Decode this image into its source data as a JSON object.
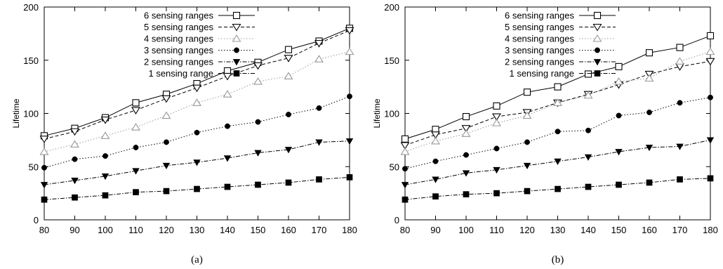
{
  "chart_data": [
    {
      "type": "line",
      "caption": "(a)",
      "ylabel": "Lifetime",
      "xlim": [
        80,
        180
      ],
      "ylim": [
        0,
        200
      ],
      "x": [
        80,
        90,
        100,
        110,
        120,
        130,
        140,
        150,
        160,
        170,
        180
      ],
      "xticks": [
        "80",
        "90",
        "100",
        "110",
        "120",
        "130",
        "140",
        "150",
        "160",
        "170",
        "180"
      ],
      "yticks": [
        "0",
        "50",
        "100",
        "150",
        "200"
      ],
      "grid": false,
      "legend_position": "top-left",
      "series": [
        {
          "name": "6 sensing ranges",
          "marker": "square-open",
          "dash": "solid",
          "values": [
            79,
            86,
            96,
            110,
            118,
            128,
            140,
            148,
            160,
            168,
            180
          ]
        },
        {
          "name": "5 sensing ranges",
          "marker": "triangle-down-open",
          "dash": "dashed",
          "values": [
            76,
            83,
            94,
            103,
            114,
            124,
            135,
            145,
            152,
            166,
            178
          ]
        },
        {
          "name": "4 sensing ranges",
          "marker": "triangle-up-open",
          "dash": "dotted",
          "values": [
            64,
            71,
            79,
            87,
            98,
            110,
            118,
            130,
            135,
            151,
            158
          ]
        },
        {
          "name": "3 sensing ranges",
          "marker": "circle-filled",
          "dash": "dotted",
          "values": [
            49,
            57,
            60,
            68,
            73,
            82,
            88,
            92,
            99,
            105,
            116
          ]
        },
        {
          "name": "2 sensing ranges",
          "marker": "triangle-down-filled",
          "dash": "dashdot",
          "values": [
            33,
            37,
            41,
            46,
            51,
            54,
            58,
            63,
            66,
            73,
            74
          ]
        },
        {
          "name": "1 sensing range",
          "marker": "square-filled",
          "dash": "dashdot",
          "values": [
            19,
            21,
            23,
            26,
            27,
            29,
            31,
            33,
            35,
            38,
            40
          ]
        }
      ]
    },
    {
      "type": "line",
      "caption": "(b)",
      "ylabel": "Lifetime",
      "xlim": [
        80,
        180
      ],
      "ylim": [
        0,
        200
      ],
      "x": [
        80,
        90,
        100,
        110,
        120,
        130,
        140,
        150,
        160,
        170,
        180
      ],
      "xticks": [
        "80",
        "90",
        "100",
        "110",
        "120",
        "130",
        "140",
        "150",
        "160",
        "170",
        "180"
      ],
      "yticks": [
        "0",
        "50",
        "100",
        "150",
        "200"
      ],
      "grid": false,
      "legend_position": "top-left",
      "series": [
        {
          "name": "6 sensing ranges",
          "marker": "square-open",
          "dash": "solid",
          "values": [
            76,
            85,
            97,
            107,
            120,
            125,
            137,
            144,
            157,
            162,
            173
          ]
        },
        {
          "name": "5 sensing ranges",
          "marker": "triangle-down-open",
          "dash": "dashed",
          "values": [
            70,
            80,
            86,
            97,
            101,
            110,
            118,
            127,
            137,
            144,
            149
          ]
        },
        {
          "name": "4 sensing ranges",
          "marker": "triangle-up-open",
          "dash": "dotted",
          "values": [
            64,
            74,
            81,
            91,
            98,
            110,
            117,
            130,
            133,
            149,
            158
          ]
        },
        {
          "name": "3 sensing ranges",
          "marker": "circle-filled",
          "dash": "dotted",
          "values": [
            48,
            55,
            61,
            67,
            73,
            83,
            84,
            98,
            101,
            110,
            115
          ]
        },
        {
          "name": "2 sensing ranges",
          "marker": "triangle-down-filled",
          "dash": "dashdot",
          "values": [
            33,
            38,
            44,
            47,
            51,
            55,
            59,
            64,
            68,
            69,
            75
          ]
        },
        {
          "name": "1 sensing range",
          "marker": "square-filled",
          "dash": "dashdot",
          "values": [
            19,
            22,
            24,
            25,
            27,
            29,
            31,
            33,
            35,
            38,
            39
          ]
        }
      ]
    }
  ]
}
